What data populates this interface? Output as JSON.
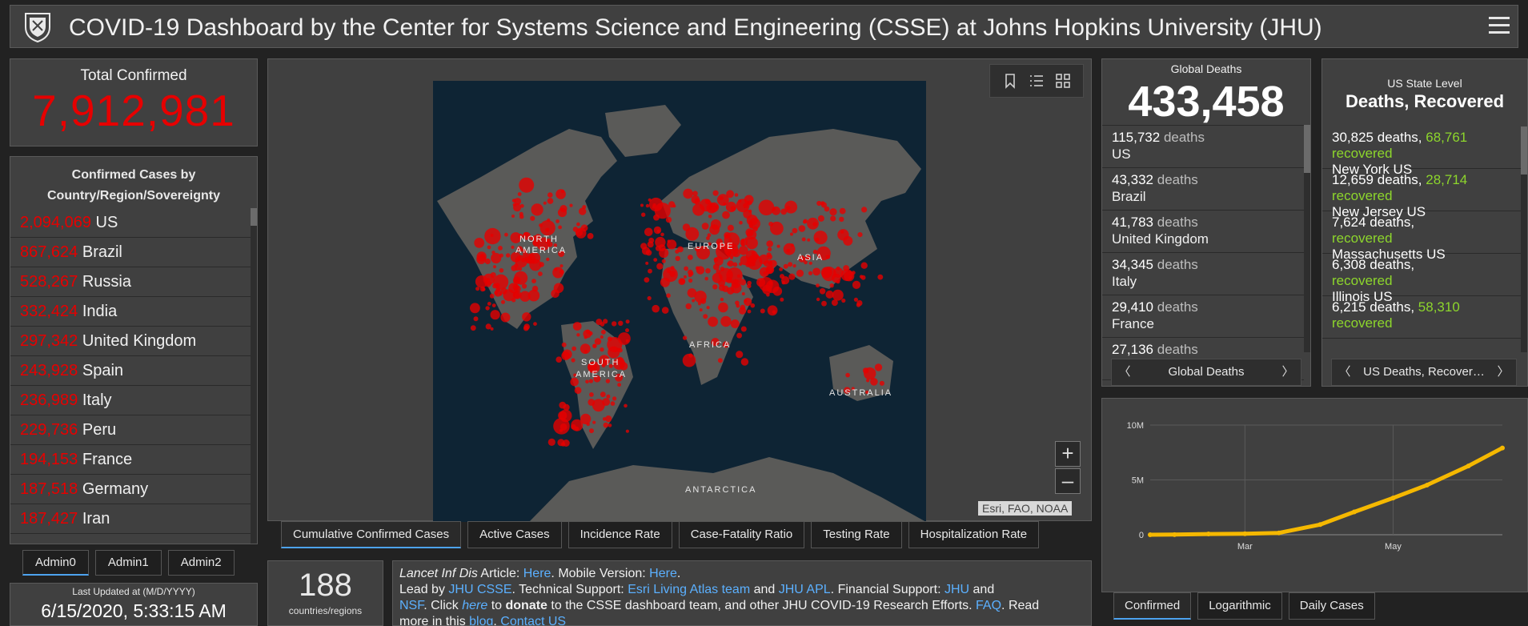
{
  "header": {
    "title": "COVID-19 Dashboard by the Center for Systems Science and Engineering (CSSE) at Johns Hopkins University (JHU)"
  },
  "total_confirmed": {
    "label": "Total Confirmed",
    "value": "7,912,981"
  },
  "confirmed_list": {
    "header_line1": "Confirmed Cases by",
    "header_line2": "Country/Region/Sovereignty",
    "rows": [
      {
        "value": "2,094,069",
        "name": "US"
      },
      {
        "value": "867,624",
        "name": "Brazil"
      },
      {
        "value": "528,267",
        "name": "Russia"
      },
      {
        "value": "332,424",
        "name": "India"
      },
      {
        "value": "297,342",
        "name": "United Kingdom"
      },
      {
        "value": "243,928",
        "name": "Spain"
      },
      {
        "value": "236,989",
        "name": "Italy"
      },
      {
        "value": "229,736",
        "name": "Peru"
      },
      {
        "value": "194,153",
        "name": "France"
      },
      {
        "value": "187,518",
        "name": "Germany"
      },
      {
        "value": "187,427",
        "name": "Iran"
      }
    ],
    "scroll": {
      "position": 0.0
    }
  },
  "admin_tabs": [
    "Admin0",
    "Admin1",
    "Admin2"
  ],
  "last_updated": {
    "label": "Last Updated at (M/D/YYYY)",
    "value": "6/15/2020, 5:33:15 AM"
  },
  "map": {
    "labels": [
      "NORTH",
      "AMERICA",
      "EUROPE",
      "ASIA",
      "AFRICA",
      "SOUTH",
      "AMERICA",
      "AUSTRALIA",
      "ANTARCTICA"
    ],
    "attribution": "Esri, FAO, NOAA",
    "zoom_in": "+",
    "zoom_out": "–",
    "tools": [
      "bookmark-icon",
      "list-icon",
      "qr-grid-icon"
    ]
  },
  "map_tabs": [
    "Cumulative Confirmed Cases",
    "Active Cases",
    "Incidence Rate",
    "Case-Fatality Ratio",
    "Testing Rate",
    "Hospitalization Rate"
  ],
  "country_count": {
    "value": "188",
    "label": "countries/regions"
  },
  "info": {
    "journal": "Lancet Inf Dis",
    "t1": " Article: ",
    "here1": "Here",
    "t2": ". Mobile Version: ",
    "here2": "Here",
    "t3": ".",
    "t4": "Lead by ",
    "jhu_csse": "JHU CSSE",
    "t5": ". Technical Support: ",
    "esri": "Esri Living Atlas team",
    "t6": " and ",
    "apl": "JHU APL",
    "t7": ". Financial Support: ",
    "jhu": "JHU",
    "t8": " and",
    "nsf": "NSF",
    "t9": ". Click ",
    "here3": "here",
    "t10": " to ",
    "donate": "donate",
    "t11": " to the CSSE dashboard team, and other JHU COVID-19 Research Efforts. ",
    "faq": "FAQ",
    "t12": ". Read",
    "t13": "more in this ",
    "blog": "blog",
    "t14": ". ",
    "contact": "Contact US"
  },
  "global_deaths": {
    "label": "Global Deaths",
    "value": "433,458",
    "unit": "deaths",
    "rows": [
      {
        "value": "115,732",
        "name": "US"
      },
      {
        "value": "43,332",
        "name": "Brazil"
      },
      {
        "value": "41,783",
        "name": "United Kingdom"
      },
      {
        "value": "34,345",
        "name": "Italy"
      },
      {
        "value": "29,410",
        "name": "France"
      },
      {
        "value": "27,136",
        "name": ""
      }
    ],
    "pager": "Global Deaths"
  },
  "us_state": {
    "label": "US State Level",
    "title": "Deaths, Recovered",
    "deaths_word": "deaths,",
    "recovered_word": "recovered",
    "rows": [
      {
        "deaths": "30,825",
        "recovered": "68,761",
        "name": "New York US"
      },
      {
        "deaths": "12,659",
        "recovered": "28,714",
        "name": "New Jersey US"
      },
      {
        "deaths": "7,624",
        "recovered": "",
        "name": "Massachusetts US"
      },
      {
        "deaths": "6,308",
        "recovered": "",
        "name": "Illinois US"
      },
      {
        "deaths": "6,215",
        "recovered": "58,310",
        "name": ""
      }
    ],
    "pager": "US Deaths, Recover…"
  },
  "chart_tabs": [
    "Confirmed",
    "Logarithmic",
    "Daily Cases"
  ],
  "colors": {
    "accent_red": "#e60000",
    "recovered_green": "#8dd62c",
    "link_blue": "#5bb0ff",
    "chart_line": "#f5b800"
  },
  "chart_data": {
    "type": "line",
    "title": "",
    "xlabel": "",
    "ylabel": "",
    "x_ticks": [
      "Mar",
      "May"
    ],
    "y_ticks": [
      "0",
      "5M",
      "10M"
    ],
    "ylim": [
      0,
      10000000
    ],
    "x": [
      "2020-01-22",
      "2020-02-01",
      "2020-02-15",
      "2020-03-01",
      "2020-03-15",
      "2020-04-01",
      "2020-04-15",
      "2020-05-01",
      "2020-05-15",
      "2020-06-01",
      "2020-06-15"
    ],
    "series": [
      {
        "values": [
          555,
          12000,
          69000,
          88000,
          167000,
          930000,
          2080000,
          3350000,
          4530000,
          6270000,
          7910000
        ]
      }
    ]
  }
}
